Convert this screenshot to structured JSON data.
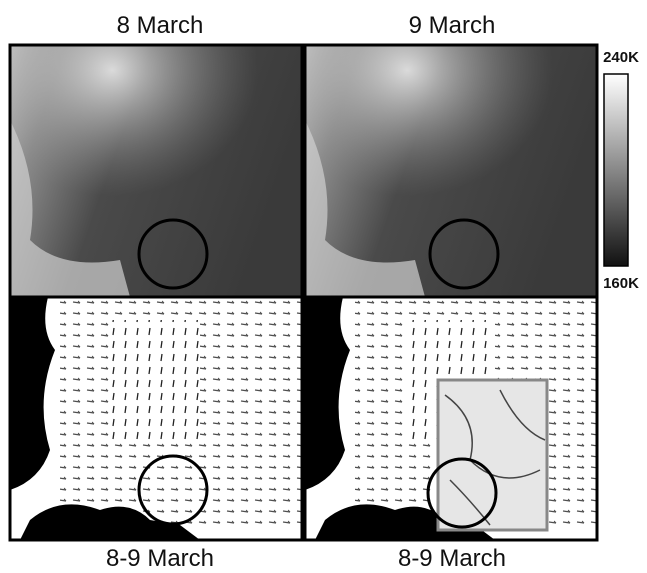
{
  "panels": {
    "top_left": {
      "label": "8 March"
    },
    "top_right": {
      "label": "9 March"
    },
    "bottom_left": {
      "label": "8-9 March"
    },
    "bottom_right": {
      "label": "8-9 March"
    }
  },
  "colorbar": {
    "max_label": "240K",
    "min_label": "160K"
  }
}
